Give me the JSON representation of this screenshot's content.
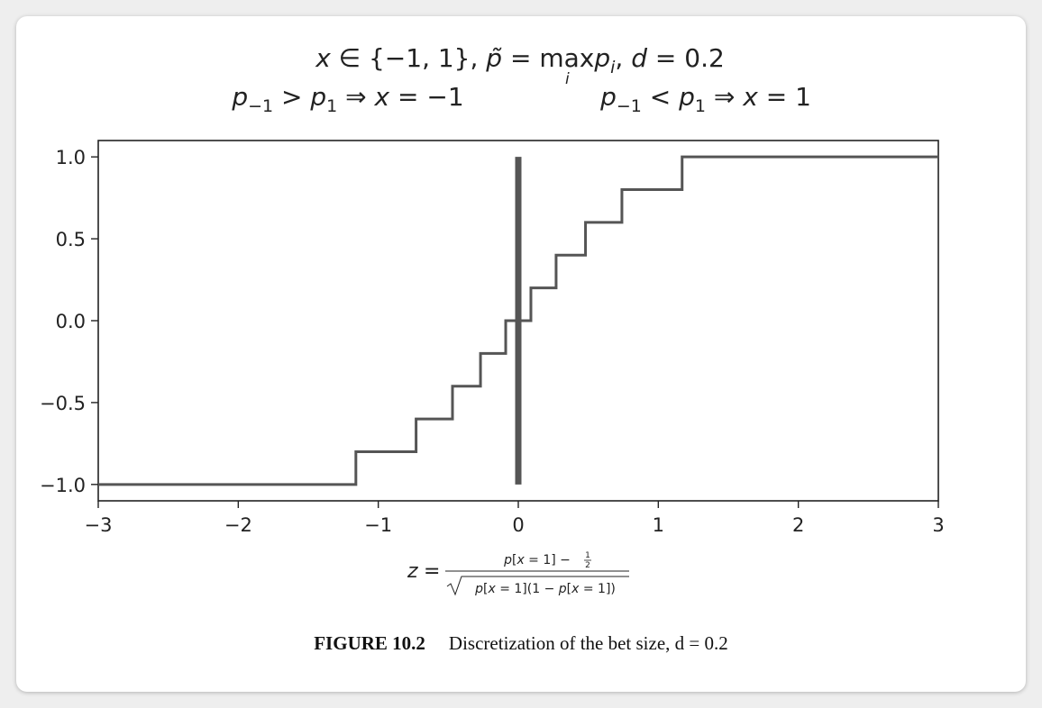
{
  "chart_data": {
    "type": "line",
    "title_line1": "x ∈ {−1, 1},  p̃ = max_i p_i,  d = 0.2",
    "title_line2_left": "p−1 > p1 ⇒ x = −1",
    "title_line2_right": "p−1 < p1 ⇒ x = 1",
    "xlabel": "z = (p[x = 1] − 1/2) / √(p[x = 1](1 − p[x = 1]))",
    "ylabel": "",
    "xlim": [
      -3,
      3
    ],
    "ylim": [
      -1.1,
      1.1
    ],
    "x_ticks": [
      "−3",
      "−2",
      "−1",
      "0",
      "1",
      "2",
      "3"
    ],
    "y_ticks": [
      "1.0",
      "0.5",
      "0.0",
      "−0.5",
      "−1.0"
    ],
    "grid": false,
    "legend": "none",
    "line_color": "#555555",
    "series": [
      {
        "step_x": [
          -3,
          -1.16,
          -1.16,
          -0.73,
          -0.73,
          -0.47,
          -0.47,
          -0.27,
          -0.27,
          -0.09,
          -0.09,
          0.09,
          0.09,
          0.27,
          0.27,
          0.48,
          0.48,
          0.74,
          0.74,
          1.17,
          1.17,
          3
        ],
        "step_y": [
          -1.0,
          -1.0,
          -0.8,
          -0.8,
          -0.6,
          -0.6,
          -0.4,
          -0.4,
          -0.2,
          -0.2,
          0.0,
          0.0,
          0.2,
          0.2,
          0.4,
          0.4,
          0.6,
          0.6,
          0.8,
          0.8,
          1.0,
          1.0
        ]
      },
      {
        "x": [
          0,
          0
        ],
        "y": [
          -1.0,
          1.0
        ]
      }
    ]
  },
  "caption": {
    "figure_number": "FIGURE 10.2",
    "text": "Discretization of the bet size, d = 0.2"
  }
}
